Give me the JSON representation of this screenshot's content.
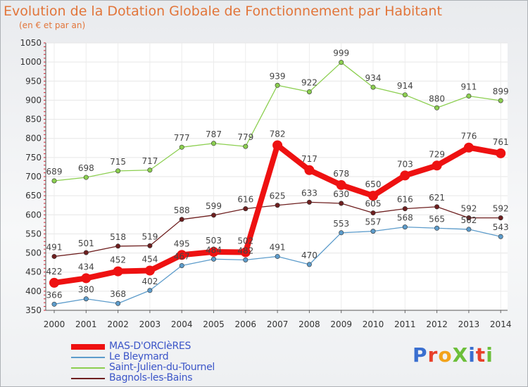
{
  "header": {
    "title": "Evolution de la Dotation Globale de Fonctionnement par Habitant",
    "subtitle": "(en € et par an)"
  },
  "logo_text": "ProXiti",
  "chart_data": {
    "type": "line",
    "title": "Evolution de la Dotation Globale de Fonctionnement par Habitant",
    "subtitle": "(en € et par an)",
    "categories": [
      "2000",
      "2001",
      "2002",
      "2003",
      "2004",
      "2005",
      "2006",
      "2007",
      "2008",
      "2009",
      "2010",
      "2011",
      "2012",
      "2013",
      "2014"
    ],
    "ylim": [
      350,
      1050
    ],
    "yticks": [
      350,
      400,
      450,
      500,
      550,
      600,
      650,
      700,
      750,
      800,
      850,
      900,
      950,
      1000,
      1050
    ],
    "grid": true,
    "legend_position": "bottom-left",
    "series": [
      {
        "name": "Saint-Julien-du-Tournel",
        "color": "#8ccf50",
        "values": [
          689,
          698,
          715,
          717,
          777,
          787,
          779,
          939,
          922,
          999,
          934,
          914,
          880,
          911,
          899
        ]
      },
      {
        "name": "Bagnols-les-Bains",
        "color": "#6e1f1f",
        "values": [
          491,
          501,
          518,
          519,
          588,
          599,
          616,
          625,
          633,
          630,
          605,
          616,
          621,
          592,
          592
        ]
      },
      {
        "name": "Le Bleymard",
        "color": "#5d9ccb",
        "values": [
          366,
          380,
          368,
          402,
          467,
          484,
          482,
          491,
          470,
          553,
          557,
          568,
          565,
          562,
          543
        ]
      },
      {
        "name": "MAS-D'ORCIèRES",
        "color": "#ee1111",
        "values": [
          422,
          434,
          452,
          454,
          495,
          503,
          502,
          782,
          717,
          678,
          650,
          703,
          729,
          776,
          761
        ]
      }
    ]
  }
}
